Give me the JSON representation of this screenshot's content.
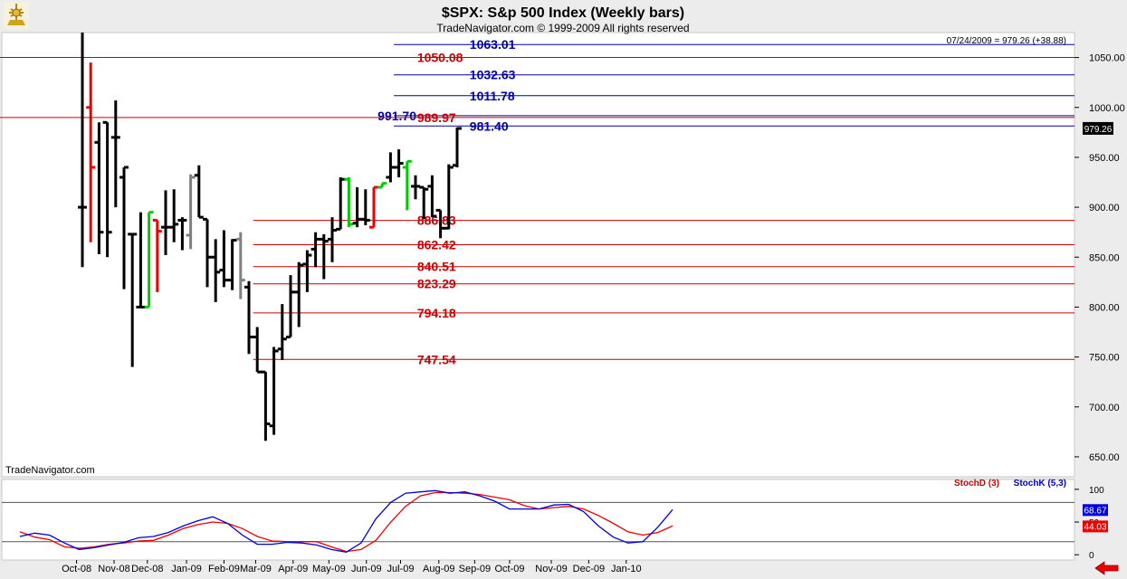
{
  "header": {
    "title": "$SPX:  S&p 500 Index  (Weekly bars)",
    "subtitle": "TradeNavigator.com © 1999-2009 All rights reserved",
    "quote": "07/24/2009 = 979.26 (+38.88)",
    "watermark": "TradeNavigator.com"
  },
  "colors": {
    "bar": "#000000",
    "up_bar": "#00cc00",
    "down_bar": "#ee0000",
    "neutral_bar": "#808080",
    "red_level": "#cc0000",
    "blue_level": "#0000aa",
    "stoch_d": "#ee0000",
    "stoch_k": "#0000dd",
    "background": "#ffffff",
    "frame": "#ececec"
  },
  "chart_data": [
    {
      "type": "bar",
      "subtype": "ohlc",
      "y_axis": {
        "ylim": [
          630,
          1075
        ],
        "ticks": [
          650,
          700,
          750,
          800,
          850,
          900,
          950,
          1000,
          1050
        ]
      },
      "last_price_label": "979.26",
      "x_axis": {
        "ticks": [
          {
            "label": "Oct-08",
            "week": 0.5
          },
          {
            "label": "Nov-08",
            "week": 5
          },
          {
            "label": "Dec-08",
            "week": 9
          },
          {
            "label": "Jan-09",
            "week": 13.7
          },
          {
            "label": "Feb-09",
            "week": 18.2
          },
          {
            "label": "Mar-09",
            "week": 22
          },
          {
            "label": "Apr-09",
            "week": 26.5
          },
          {
            "label": "May-09",
            "week": 30.8
          },
          {
            "label": "Jun-09",
            "week": 35.3
          },
          {
            "label": "Jul-09",
            "week": 39.4
          },
          {
            "label": "Aug-09",
            "week": 44
          },
          {
            "label": "Sep-09",
            "week": 48.3
          },
          {
            "label": "Oct-09",
            "week": 52.5
          },
          {
            "label": "Nov-09",
            "week": 57.5
          },
          {
            "label": "Dec-09",
            "week": 62
          },
          {
            "label": "Jan-10",
            "week": 66.5
          }
        ]
      },
      "bars": [
        {
          "o": 900,
          "h": 1075,
          "l": 840,
          "c": 900,
          "color": "black"
        },
        {
          "o": 1000,
          "h": 1045,
          "l": 865,
          "c": 940,
          "color": "red"
        },
        {
          "o": 965,
          "h": 985,
          "l": 853,
          "c": 875,
          "color": "black"
        },
        {
          "o": 985,
          "h": 985,
          "l": 850,
          "c": 875,
          "color": "black"
        },
        {
          "o": 970,
          "h": 1007,
          "l": 900,
          "c": 970,
          "color": "black"
        },
        {
          "o": 930,
          "h": 940,
          "l": 818,
          "c": 940,
          "color": "black"
        },
        {
          "o": 873,
          "h": 873,
          "l": 740,
          "c": 873,
          "color": "black"
        },
        {
          "o": 800,
          "h": 895,
          "l": 800,
          "c": 800,
          "color": "black"
        },
        {
          "o": 800,
          "h": 895,
          "l": 800,
          "c": 895,
          "color": "green"
        },
        {
          "o": 887,
          "h": 887,
          "l": 815,
          "c": 876,
          "color": "red"
        },
        {
          "o": 880,
          "h": 917,
          "l": 852,
          "c": 880,
          "color": "black"
        },
        {
          "o": 880,
          "h": 918,
          "l": 865,
          "c": 883,
          "color": "black"
        },
        {
          "o": 887,
          "h": 890,
          "l": 857,
          "c": 887,
          "color": "black"
        },
        {
          "o": 872,
          "h": 933,
          "l": 858,
          "c": 930,
          "color": "gray"
        },
        {
          "o": 932,
          "h": 942,
          "l": 890,
          "c": 890,
          "color": "black"
        },
        {
          "o": 888,
          "h": 888,
          "l": 820,
          "c": 850,
          "color": "black"
        },
        {
          "o": 850,
          "h": 868,
          "l": 805,
          "c": 835,
          "color": "black"
        },
        {
          "o": 837,
          "h": 877,
          "l": 820,
          "c": 827,
          "color": "black"
        },
        {
          "o": 827,
          "h": 868,
          "l": 817,
          "c": 867,
          "color": "black"
        },
        {
          "o": 868,
          "h": 875,
          "l": 808,
          "c": 827,
          "color": "gray"
        },
        {
          "o": 820,
          "h": 826,
          "l": 753,
          "c": 770,
          "color": "black"
        },
        {
          "o": 770,
          "h": 780,
          "l": 735,
          "c": 735,
          "color": "black"
        },
        {
          "o": 735,
          "h": 735,
          "l": 666,
          "c": 683,
          "color": "black"
        },
        {
          "o": 681,
          "h": 760,
          "l": 672,
          "c": 756,
          "color": "black"
        },
        {
          "o": 758,
          "h": 803,
          "l": 747,
          "c": 768,
          "color": "black"
        },
        {
          "o": 770,
          "h": 832,
          "l": 770,
          "c": 815,
          "color": "black"
        },
        {
          "o": 815,
          "h": 845,
          "l": 780,
          "c": 842,
          "color": "black"
        },
        {
          "o": 843,
          "h": 857,
          "l": 815,
          "c": 852,
          "color": "black"
        },
        {
          "o": 858,
          "h": 875,
          "l": 840,
          "c": 868,
          "color": "black"
        },
        {
          "o": 868,
          "h": 873,
          "l": 828,
          "c": 866,
          "color": "black"
        },
        {
          "o": 868,
          "h": 890,
          "l": 845,
          "c": 877,
          "color": "black"
        },
        {
          "o": 878,
          "h": 930,
          "l": 878,
          "c": 928,
          "color": "black"
        },
        {
          "o": 928,
          "h": 930,
          "l": 880,
          "c": 883,
          "color": "green"
        },
        {
          "o": 884,
          "h": 920,
          "l": 880,
          "c": 888,
          "color": "black"
        },
        {
          "o": 888,
          "h": 918,
          "l": 882,
          "c": 887,
          "color": "black"
        },
        {
          "o": 880,
          "h": 920,
          "l": 880,
          "c": 920,
          "color": "red"
        },
        {
          "o": 920,
          "h": 924,
          "l": 920,
          "c": 924,
          "color": "green"
        },
        {
          "o": 930,
          "h": 955,
          "l": 925,
          "c": 940,
          "color": "black"
        },
        {
          "o": 940,
          "h": 958,
          "l": 930,
          "c": 944,
          "color": "black"
        },
        {
          "o": 940,
          "h": 946,
          "l": 897,
          "c": 946,
          "color": "green"
        },
        {
          "o": 921,
          "h": 932,
          "l": 908,
          "c": 921,
          "color": "black"
        },
        {
          "o": 920,
          "h": 920,
          "l": 888,
          "c": 918,
          "color": "black"
        },
        {
          "o": 921,
          "h": 932,
          "l": 890,
          "c": 891,
          "color": "black"
        },
        {
          "o": 897,
          "h": 897,
          "l": 869,
          "c": 879,
          "color": "black"
        },
        {
          "o": 879,
          "h": 943,
          "l": 878,
          "c": 940,
          "color": "black"
        },
        {
          "o": 942,
          "h": 980,
          "l": 940,
          "c": 979,
          "color": "black"
        }
      ],
      "levels": [
        {
          "value": 1063.01,
          "label": "1063.01",
          "color": "blue",
          "x_start_week": 37.4,
          "label_week": 46.5
        },
        {
          "value": 1050.08,
          "label": "1050.08",
          "color": "red",
          "x_start_week": 0,
          "label_week": 40.2
        },
        {
          "value": 1032.63,
          "label": "1032.63",
          "color": "blue",
          "x_start_week": 37.4,
          "label_week": 46.5
        },
        {
          "value": 1011.78,
          "label": "1011.78",
          "color": "blue",
          "x_start_week": 37.4,
          "label_week": 46.5
        },
        {
          "value": 991.7,
          "label": "991.70",
          "color": "blue",
          "x_start_week": 37.4,
          "label_week": 20.0,
          "label_anchor": "end"
        },
        {
          "value": 989.97,
          "label": "989.97",
          "color": "red",
          "x_start_week": 0,
          "label_week": 40.2
        },
        {
          "value": 981.4,
          "label": "981.40",
          "color": "blue",
          "x_start_week": 37.4,
          "label_week": 46.5
        },
        {
          "value": 886.83,
          "label": "886.83",
          "color": "red",
          "x_start_week": 20.5,
          "label_week": 40.2
        },
        {
          "value": 862.42,
          "label": "862.42",
          "color": "red",
          "x_start_week": 20.5,
          "label_week": 40.2
        },
        {
          "value": 840.51,
          "label": "840.51",
          "color": "red",
          "x_start_week": 20.5,
          "label_week": 40.2
        },
        {
          "value": 823.29,
          "label": "823.29",
          "color": "red",
          "x_start_week": 20.5,
          "label_week": 40.2
        },
        {
          "value": 794.18,
          "label": "794.18",
          "color": "red",
          "x_start_week": 20.5,
          "label_week": 40.2
        },
        {
          "value": 747.54,
          "label": "747.54",
          "color": "red",
          "x_start_week": 20.5,
          "label_week": 40.2
        }
      ]
    },
    {
      "type": "line",
      "legend": [
        {
          "name": "StochD (3)",
          "color": "red"
        },
        {
          "name": "StochK (5,3)",
          "color": "blue"
        }
      ],
      "ylim": [
        -8,
        115
      ],
      "ticks": [
        0,
        50,
        100
      ],
      "reference_lines": [
        80,
        20
      ],
      "last_values": {
        "stoch_k": "68.67",
        "stoch_d": "44.03"
      },
      "series": [
        {
          "name": "StochD (3)",
          "color": "red",
          "x": [
            0,
            1,
            2,
            3,
            4,
            5,
            6,
            7,
            8,
            9,
            10,
            11,
            12,
            13,
            14,
            15,
            16,
            17,
            18,
            19,
            20,
            21,
            22,
            23,
            24,
            25,
            26,
            27,
            28,
            29,
            30,
            31,
            32,
            33,
            34,
            35,
            36,
            37,
            38,
            39,
            40,
            41,
            42,
            43,
            44
          ],
          "values": [
            35,
            27,
            23,
            12,
            10,
            12,
            16,
            18,
            21,
            22,
            30,
            40,
            46,
            50,
            48,
            40,
            28,
            21,
            20,
            20,
            20,
            12,
            5,
            8,
            22,
            50,
            74,
            90,
            95,
            95,
            94,
            92,
            88,
            84,
            75,
            70,
            72,
            74,
            70,
            60,
            48,
            35,
            30,
            34,
            44
          ]
        },
        {
          "name": "StochK (5,3)",
          "color": "blue",
          "x": [
            0,
            1,
            2,
            3,
            4,
            5,
            6,
            7,
            8,
            9,
            10,
            11,
            12,
            13,
            14,
            15,
            16,
            17,
            18,
            19,
            20,
            21,
            22,
            23,
            24,
            25,
            26,
            27,
            28,
            29,
            30,
            31,
            32,
            33,
            34,
            35,
            36,
            37,
            38,
            39,
            40,
            41,
            42,
            43,
            44
          ],
          "values": [
            28,
            33,
            30,
            18,
            8,
            11,
            15,
            19,
            26,
            28,
            34,
            44,
            52,
            58,
            48,
            30,
            16,
            16,
            19,
            18,
            15,
            8,
            4,
            18,
            55,
            80,
            94,
            96,
            98,
            94,
            96,
            90,
            82,
            70,
            70,
            70,
            76,
            77,
            66,
            44,
            27,
            18,
            20,
            42,
            69
          ]
        }
      ]
    }
  ]
}
